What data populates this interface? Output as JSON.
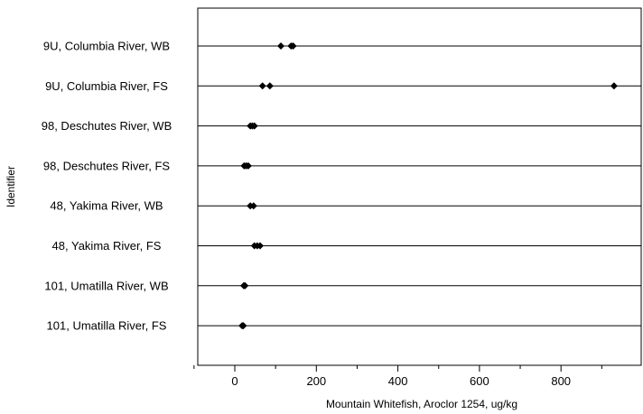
{
  "chart_data": {
    "type": "scatter",
    "title": "",
    "xlabel": "Mountain Whitefish, Aroclor 1254, ug/kg",
    "ylabel": "Identifier",
    "xlim": [
      -100,
      960
    ],
    "xticks": [
      0,
      200,
      400,
      600,
      800
    ],
    "xminorticks": [
      -100,
      100,
      300,
      500,
      700,
      900
    ],
    "grid": "horizontal reference lines at each category",
    "legend": "none",
    "marker_color": "#000000",
    "categories": [
      "9U, Columbia River, WB",
      "9U, Columbia River, FS",
      "98, Deschutes River, WB",
      "98, Deschutes River, FS",
      "48, Yakima River, WB",
      "48, Yakima River, FS",
      "101, Umatilla River, WB",
      "101, Umatilla River, FS"
    ],
    "series": [
      {
        "points": [
          {
            "category": "9U, Columbia River, WB",
            "x": 113
          },
          {
            "category": "9U, Columbia River, WB",
            "x": 138
          },
          {
            "category": "9U, Columbia River, WB",
            "x": 143
          },
          {
            "category": "9U, Columbia River, FS",
            "x": 68
          },
          {
            "category": "9U, Columbia River, FS",
            "x": 86
          },
          {
            "category": "9U, Columbia River, FS",
            "x": 930
          },
          {
            "category": "98, Deschutes River, WB",
            "x": 38
          },
          {
            "category": "98, Deschutes River, WB",
            "x": 43
          },
          {
            "category": "98, Deschutes River, WB",
            "x": 48
          },
          {
            "category": "98, Deschutes River, FS",
            "x": 23
          },
          {
            "category": "98, Deschutes River, FS",
            "x": 28
          },
          {
            "category": "98, Deschutes River, FS",
            "x": 33
          },
          {
            "category": "48, Yakima River, WB",
            "x": 38
          },
          {
            "category": "48, Yakima River, WB",
            "x": 46
          },
          {
            "category": "48, Yakima River, FS",
            "x": 48
          },
          {
            "category": "48, Yakima River, FS",
            "x": 55
          },
          {
            "category": "48, Yakima River, FS",
            "x": 62
          },
          {
            "category": "101, Umatilla River, WB",
            "x": 22
          },
          {
            "category": "101, Umatilla River, WB",
            "x": 25
          },
          {
            "category": "101, Umatilla River, FS",
            "x": 18
          },
          {
            "category": "101, Umatilla River, FS",
            "x": 21
          }
        ]
      }
    ]
  }
}
